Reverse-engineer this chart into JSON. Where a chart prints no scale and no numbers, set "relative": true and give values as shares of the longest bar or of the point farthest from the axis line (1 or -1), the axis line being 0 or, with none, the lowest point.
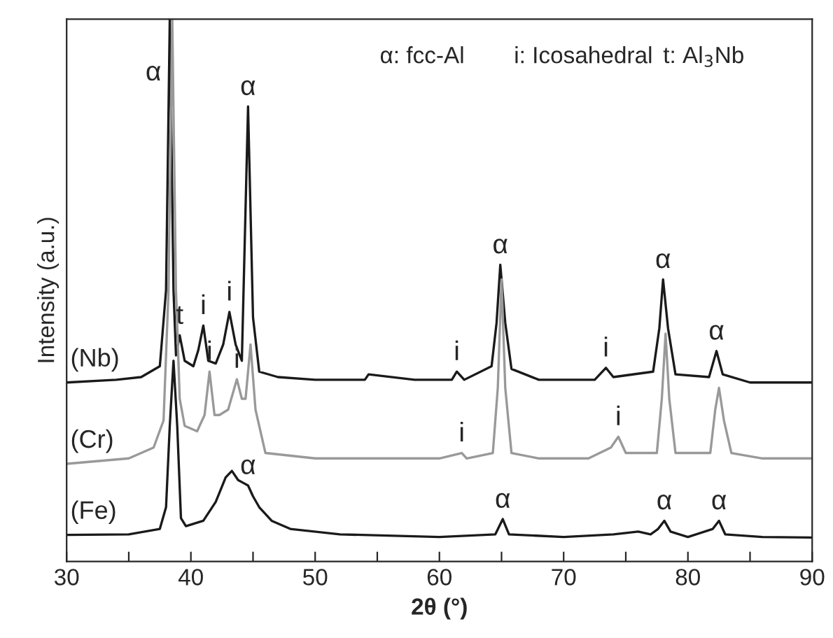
{
  "chart_data": {
    "type": "line",
    "relative": true,
    "xlabel": "2θ (°)",
    "ylabel": "Intensity (a.u.)",
    "xlim": [
      30,
      90
    ],
    "xticks": [
      30,
      {
        "value": 35,
        "label": null
      },
      40,
      {
        "value": 45,
        "label": null
      },
      50,
      {
        "value": 55,
        "label": null
      },
      60,
      {
        "value": 65,
        "label": null
      },
      70,
      {
        "value": 75,
        "label": null
      },
      80,
      {
        "value": 85,
        "label": null
      },
      90
    ],
    "grid": false,
    "marker": "none",
    "line_style": "solid",
    "series": [
      {
        "name": "(Nb)",
        "color": "#1a1a1a",
        "x": [
          30,
          34,
          36,
          37.5,
          38.0,
          38.3,
          38.6,
          38.8,
          39.1,
          39.5,
          40.2,
          40.6,
          41.0,
          41.4,
          42.0,
          42.6,
          43.1,
          43.6,
          44.1,
          44.6,
          45.0,
          45.5,
          47,
          50,
          54,
          54.3,
          58,
          61,
          61.4,
          62,
          64.2,
          64.6,
          64.9,
          65.3,
          65.8,
          68,
          72.5,
          73.4,
          74,
          77.2,
          77.7,
          78.0,
          78.4,
          79,
          81.7,
          82.3,
          82.8,
          85,
          90
        ],
        "values": [
          0.33,
          0.335,
          0.34,
          0.36,
          0.5,
          1.0,
          0.5,
          0.38,
          0.417,
          0.37,
          0.36,
          0.39,
          0.435,
          0.37,
          0.365,
          0.4,
          0.46,
          0.4,
          0.37,
          0.839,
          0.45,
          0.35,
          0.34,
          0.335,
          0.335,
          0.345,
          0.335,
          0.335,
          0.35,
          0.335,
          0.36,
          0.44,
          0.547,
          0.44,
          0.355,
          0.335,
          0.335,
          0.357,
          0.34,
          0.35,
          0.43,
          0.52,
          0.43,
          0.345,
          0.34,
          0.388,
          0.345,
          0.33,
          0.33
        ]
      },
      {
        "name": "(Cr)",
        "color": "#999999",
        "x": [
          30,
          35,
          37,
          37.8,
          38.2,
          38.5,
          38.8,
          39.1,
          39.5,
          40.5,
          41.1,
          41.5,
          41.9,
          42.3,
          43.0,
          43.7,
          44.1,
          44.4,
          44.8,
          45.2,
          46,
          50,
          55,
          60,
          61.8,
          62.2,
          64.3,
          64.7,
          65.0,
          65.3,
          65.8,
          68,
          72,
          73.8,
          74.4,
          75,
          77.5,
          77.9,
          78.2,
          78.5,
          79,
          81.8,
          82.2,
          82.5,
          82.9,
          83.5,
          86,
          90
        ],
        "values": [
          0.18,
          0.19,
          0.21,
          0.26,
          0.5,
          1.0,
          0.5,
          0.3,
          0.25,
          0.24,
          0.27,
          0.35,
          0.27,
          0.27,
          0.28,
          0.336,
          0.3,
          0.3,
          0.4,
          0.28,
          0.2,
          0.19,
          0.19,
          0.19,
          0.2,
          0.19,
          0.2,
          0.32,
          0.52,
          0.32,
          0.2,
          0.19,
          0.19,
          0.21,
          0.23,
          0.2,
          0.2,
          0.3,
          0.42,
          0.3,
          0.2,
          0.2,
          0.28,
          0.32,
          0.26,
          0.2,
          0.19,
          0.19
        ]
      },
      {
        "name": "(Fe)",
        "color": "#1a1a1a",
        "x": [
          30,
          35,
          37.5,
          38.0,
          38.3,
          38.6,
          38.9,
          39.2,
          39.6,
          41,
          42,
          42.8,
          43.3,
          43.8,
          44.2,
          44.6,
          45,
          45.5,
          46.5,
          48,
          52,
          60,
          64.5,
          65.1,
          65.6,
          70,
          74,
          76,
          77,
          77.6,
          78.1,
          78.6,
          80,
          82,
          82.5,
          83,
          86,
          90
        ],
        "values": [
          0.049,
          0.05,
          0.06,
          0.1,
          0.25,
          0.37,
          0.25,
          0.08,
          0.065,
          0.075,
          0.11,
          0.155,
          0.167,
          0.15,
          0.145,
          0.14,
          0.12,
          0.1,
          0.075,
          0.06,
          0.05,
          0.045,
          0.05,
          0.078,
          0.05,
          0.045,
          0.05,
          0.055,
          0.05,
          0.06,
          0.075,
          0.055,
          0.045,
          0.06,
          0.075,
          0.05,
          0.045,
          0.044
        ]
      }
    ],
    "annotations": [
      "α: fcc-Al",
      "i: Icosahedral",
      "t: Al$_{3}$Nb",
      {
        "text": "α",
        "x": 38.24,
        "y": 0.9
      },
      {
        "text": "t",
        "x": 39.1,
        "y": 0.417
      },
      {
        "text": "i",
        "x": 41.0,
        "y": 0.435
      },
      {
        "text": "i",
        "x": 43.1,
        "y": 0.46
      },
      {
        "text": "α",
        "x": 44.6,
        "y": 0.839
      },
      {
        "text": "i",
        "x": 61.4,
        "y": 0.35
      },
      {
        "text": "α",
        "x": 64.9,
        "y": 0.547
      },
      {
        "text": "i",
        "x": 73.4,
        "y": 0.357
      },
      {
        "text": "α",
        "x": 78.0,
        "y": 0.52
      },
      {
        "text": "α",
        "x": 82.3,
        "y": 0.388
      },
      {
        "text": "i",
        "x": 41.5,
        "y": 0.35
      },
      {
        "text": "i",
        "x": 43.7,
        "y": 0.336
      },
      {
        "text": "i",
        "x": 61.8,
        "y": 0.2
      },
      {
        "text": "i",
        "x": 74.4,
        "y": 0.23
      },
      {
        "text": "α",
        "x": 44.6,
        "y": 0.14
      },
      {
        "text": "α",
        "x": 65.1,
        "y": 0.078
      },
      {
        "text": "α",
        "x": 78.1,
        "y": 0.075
      },
      {
        "text": "α",
        "x": 82.5,
        "y": 0.075
      }
    ]
  }
}
